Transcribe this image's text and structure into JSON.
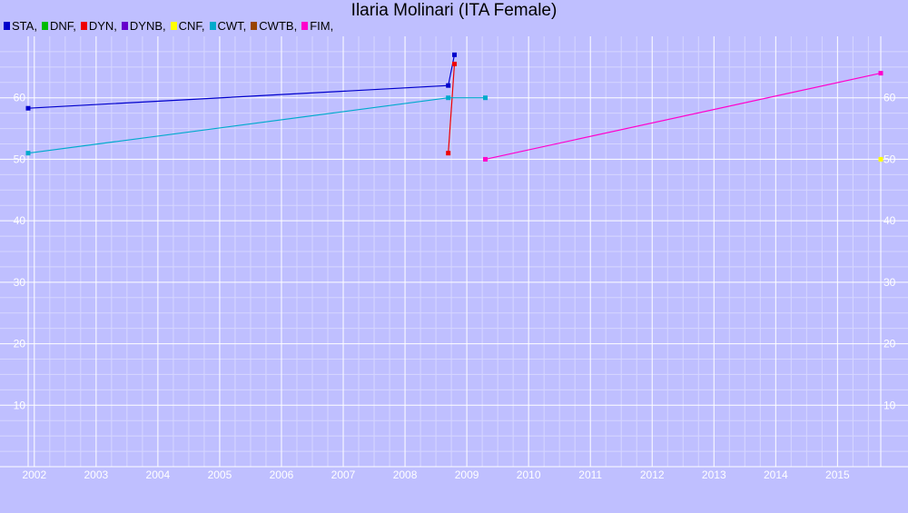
{
  "chart_data": {
    "type": "line",
    "title": "Ilaria Molinari (ITA Female)",
    "xlabel": "",
    "ylabel": "",
    "xlim": [
      1901.9,
      2015.7
    ],
    "ylim": [
      0,
      70
    ],
    "x_ticks": [
      "2002",
      "2003",
      "2004",
      "2005",
      "2006",
      "2007",
      "2008",
      "2009",
      "2010",
      "2011",
      "2012",
      "2013",
      "2014",
      "2015"
    ],
    "y_ticks": [
      10,
      20,
      30,
      40,
      50,
      60
    ],
    "grid": true,
    "legend_position": "top-left",
    "series": [
      {
        "name": "STA",
        "color": "#0000cc",
        "points": [
          [
            2001.9,
            58.3
          ],
          [
            2008.7,
            62.0
          ],
          [
            2008.8,
            67.0
          ]
        ]
      },
      {
        "name": "DNF",
        "color": "#00bb00",
        "points": []
      },
      {
        "name": "DYN",
        "color": "#ee0000",
        "points": [
          [
            2008.7,
            51.0
          ],
          [
            2008.8,
            65.5
          ]
        ]
      },
      {
        "name": "DYNB",
        "color": "#6600cc",
        "points": []
      },
      {
        "name": "CNF",
        "color": "#ffff00",
        "points": [
          [
            2015.7,
            50.0
          ]
        ]
      },
      {
        "name": "CWT",
        "color": "#00aacc",
        "points": [
          [
            2001.9,
            51.0
          ],
          [
            2008.7,
            60.0
          ],
          [
            2009.3,
            60.0
          ]
        ]
      },
      {
        "name": "CWTB",
        "color": "#994400",
        "points": []
      },
      {
        "name": "FIM",
        "color": "#ff00cc",
        "points": [
          [
            2009.3,
            50.0
          ],
          [
            2015.7,
            64.0
          ]
        ]
      }
    ]
  }
}
